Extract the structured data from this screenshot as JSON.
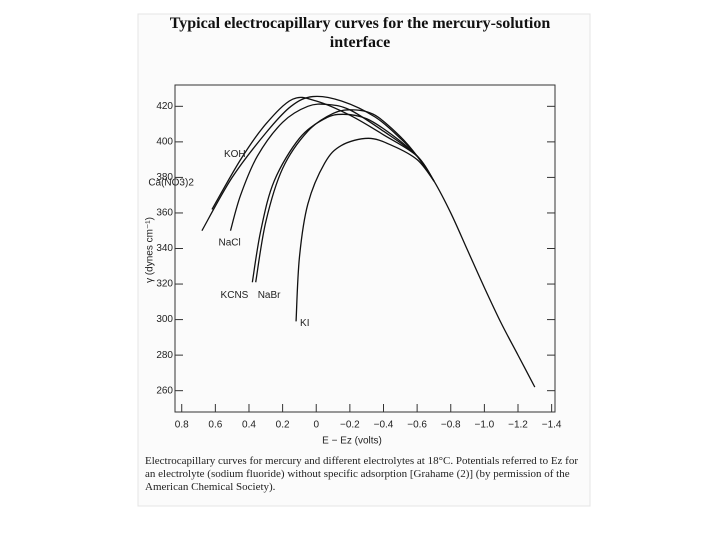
{
  "chart_data": {
    "type": "line",
    "title": "Typical electrocapillary curves for the mercury-solution interface",
    "x_label": "E − Ez (volts)",
    "y_label": "γ (dynes cm⁻¹)",
    "caption": "Electrocapillary curves for mercury and different electrolytes at 18°C. Potentials referred to Ez for an electrolyte (sodium fluoride) without specific adsorption [Grahame (2)] (by permission of the American Chemical Society).",
    "xlim": [
      0.84,
      -1.42
    ],
    "ylim": [
      248,
      432
    ],
    "xticks": [
      0.8,
      0.6,
      0.4,
      0.2,
      0,
      {
        "value": -0.2,
        "label": "−0.2"
      },
      {
        "value": -0.4,
        "label": "−0.4"
      },
      {
        "value": -0.6,
        "label": "−0.6"
      },
      {
        "value": -0.8,
        "label": "−0.8"
      },
      {
        "value": -1.0,
        "label": "−1.0"
      },
      {
        "value": -1.2,
        "label": "−1.2"
      },
      {
        "value": -1.4,
        "label": "−1.4"
      }
    ],
    "yticks": [
      260,
      280,
      300,
      320,
      340,
      360,
      380,
      400,
      420
    ],
    "color": "#111111",
    "series": [
      {
        "name": "Ca(NO3)2",
        "x": [
          0.68,
          0.5,
          0.3,
          0.15,
          0.02,
          -0.15,
          -0.35,
          -0.5,
          -0.6,
          -0.7,
          -0.8,
          -0.9,
          -1.0,
          -1.1,
          -1.2,
          -1.3
        ],
        "values": [
          350,
          380,
          405,
          420,
          425.5,
          423,
          414,
          402,
          392,
          378,
          360,
          339,
          318,
          298,
          280,
          262
        ]
      },
      {
        "name": "KOH",
        "x": [
          0.62,
          0.45,
          0.3,
          0.14,
          0,
          -0.2,
          -0.4,
          -0.6,
          -0.7
        ],
        "values": [
          362,
          390,
          410,
          424,
          423,
          415,
          404,
          392,
          378
        ]
      },
      {
        "name": "NaCl",
        "x": [
          0.51,
          0.45,
          0.35,
          0.2,
          0.05,
          -0.07,
          -0.2,
          -0.4,
          -0.6,
          -0.7
        ],
        "values": [
          350,
          370,
          392,
          411,
          420,
          421,
          418,
          406,
          392,
          378
        ]
      },
      {
        "name": "KCNS",
        "x": [
          0.38,
          0.33,
          0.25,
          0.1,
          -0.05,
          -0.16,
          -0.3,
          -0.45,
          -0.6,
          -0.7
        ],
        "values": [
          321,
          350,
          378,
          402,
          413,
          415.5,
          413,
          404,
          392,
          378
        ]
      },
      {
        "name": "NaBr",
        "x": [
          0.36,
          0.3,
          0.2,
          0.05,
          -0.1,
          -0.22,
          -0.35,
          -0.5,
          -0.6,
          -0.7
        ],
        "values": [
          321,
          355,
          385,
          406,
          416,
          418,
          415,
          403,
          392,
          378
        ]
      },
      {
        "name": "KI",
        "x": [
          0.12,
          0.1,
          0.05,
          -0.05,
          -0.15,
          -0.31,
          -0.45,
          -0.6,
          -0.7
        ],
        "values": [
          299,
          335,
          365,
          388,
          398,
          402,
          398,
          390,
          378
        ]
      }
    ]
  }
}
